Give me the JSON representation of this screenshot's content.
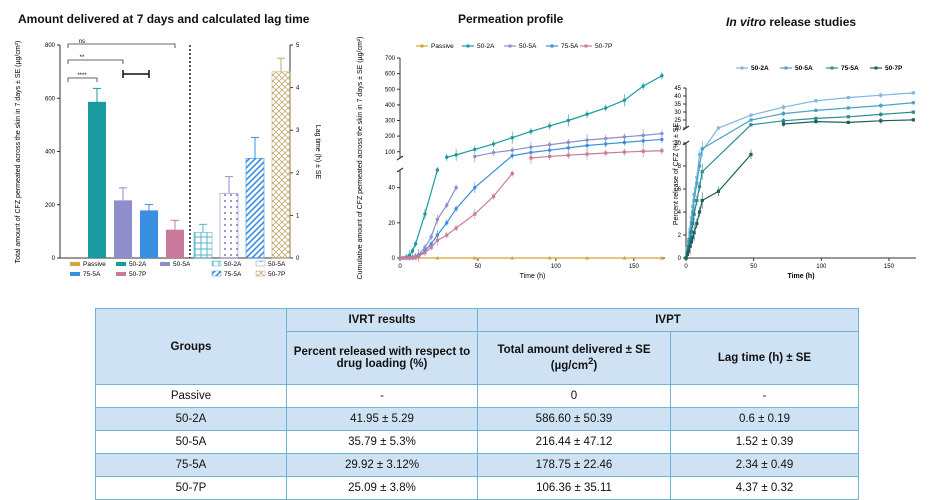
{
  "titles": {
    "panel1": "Amount delivered at 7 days and calculated lag time",
    "panel2": "Permeation profile",
    "panel3_italic": "In vitro",
    "panel3_rest": " release studies"
  },
  "colors": {
    "Passive": "#d4a33a",
    "50-2A": "#1a9aa0",
    "50-5A": "#8e8ecb",
    "75-5A": "#3b8fe0",
    "50-7P": "#c97a9b",
    "lagBeige": "#c2ab6d",
    "rel50-2A": "#7fb7df",
    "rel50-5A": "#4aa3c7",
    "rel75-5A": "#2a8a96",
    "rel50-7P": "#1f5e5a"
  },
  "chart_data": [
    {
      "type": "bar",
      "title": "Amount delivered at 7 days and calculated lag time",
      "ylabel": "Total amount of CFZ permeated across the skin in 7 days ± SE (µg/cm²)",
      "ylabel_right": "Lag time (h) ± SE",
      "ylim": [
        0,
        800
      ],
      "ylim_right": [
        0,
        5
      ],
      "yticks": [
        "0",
        "200",
        "400",
        "600",
        "800"
      ],
      "yticks_right": [
        "0",
        "1",
        "2",
        "3",
        "4",
        "5"
      ],
      "categories": [
        "Passive",
        "50-2A",
        "50-5A",
        "75-5A",
        "50-7P"
      ],
      "amount": [
        0,
        586.6,
        216.44,
        178.75,
        106.36
      ],
      "amount_se": [
        0,
        50.39,
        47.12,
        22.46,
        35.11
      ],
      "lag": [
        0.6,
        1.52,
        2.34,
        4.37
      ],
      "lag_se": [
        0.19,
        0.39,
        0.49,
        0.32
      ],
      "lag_groups": [
        "50-2A",
        "50-5A",
        "75-5A",
        "50-7P"
      ],
      "significance": [
        "****",
        "**",
        "ns"
      ],
      "legend1": [
        "Passive",
        "50-2A",
        "50-5A",
        "75-5A",
        "50-7P"
      ],
      "legend2": [
        "50-2A",
        "50-5A",
        "75-5A",
        "50-7P"
      ]
    },
    {
      "type": "line",
      "title": "Permeation profile",
      "xlabel": "Time (h)",
      "ylabel": "Cumulative amount of CFZ permeated across the skin in 7 days ± SE (µg/cm²)",
      "xlim": [
        0,
        170
      ],
      "xticks": [
        "0",
        "50",
        "100",
        "150"
      ],
      "yticks_lower": [
        "0",
        "20",
        "40"
      ],
      "yticks_upper": [
        "100",
        "200",
        "300",
        "400",
        "500",
        "600",
        "700"
      ],
      "broken_axis": [
        50,
        60
      ],
      "legend": [
        "Passive",
        "50-2A",
        "50-5A",
        "75-5A",
        "50-7P"
      ],
      "series": [
        {
          "name": "Passive",
          "x": [
            0,
            2,
            4,
            6,
            8,
            10,
            24,
            48,
            72,
            96,
            120,
            144,
            168
          ],
          "y": [
            0,
            0,
            0,
            0,
            0,
            0,
            0,
            0,
            0,
            0,
            0,
            0,
            0
          ]
        },
        {
          "name": "50-2A",
          "x": [
            0,
            2,
            4,
            6,
            8,
            10,
            16,
            24,
            30,
            36,
            48,
            60,
            72,
            84,
            96,
            108,
            120,
            132,
            144,
            156,
            168
          ],
          "y": [
            0,
            0,
            0.5,
            1.5,
            4,
            8,
            25,
            50,
            65,
            80,
            115,
            150,
            190,
            230,
            265,
            300,
            340,
            380,
            430,
            520,
            586.6
          ]
        },
        {
          "name": "50-5A",
          "x": [
            0,
            2,
            4,
            6,
            8,
            10,
            12,
            16,
            20,
            24,
            30,
            36,
            48,
            60,
            72,
            84,
            96,
            108,
            120,
            132,
            144,
            156,
            168
          ],
          "y": [
            0,
            0,
            0,
            0,
            0.5,
            1,
            2,
            6,
            12,
            22,
            30,
            40,
            70,
            95,
            110,
            130,
            145,
            160,
            175,
            185,
            195,
            205,
            216.44
          ]
        },
        {
          "name": "75-5A",
          "x": [
            0,
            2,
            4,
            6,
            8,
            10,
            12,
            16,
            20,
            24,
            30,
            36,
            48,
            60,
            72,
            84,
            96,
            108,
            120,
            132,
            144,
            156,
            168
          ],
          "y": [
            0,
            0,
            0,
            0,
            0.3,
            0.8,
            1.5,
            4,
            8,
            13,
            20,
            28,
            40,
            55,
            75,
            95,
            110,
            125,
            140,
            150,
            160,
            170,
            178.75
          ]
        },
        {
          "name": "50-7P",
          "x": [
            0,
            2,
            4,
            6,
            8,
            10,
            12,
            16,
            20,
            24,
            30,
            36,
            48,
            60,
            72,
            84,
            96,
            108,
            120,
            132,
            144,
            156,
            168
          ],
          "y": [
            0,
            0,
            0,
            0,
            0.3,
            0.6,
            1,
            3,
            6,
            10,
            13,
            17,
            25,
            35,
            48,
            60,
            70,
            78,
            85,
            92,
            98,
            103,
            106.36
          ]
        }
      ]
    },
    {
      "type": "line",
      "title": "In vitro release studies",
      "xlabel": "Time (h)",
      "ylabel": "Percent release of CFZ (%) ± SE",
      "xlim": [
        0,
        170
      ],
      "xticks": [
        "0",
        "50",
        "100",
        "150"
      ],
      "yticks_lower": [
        "0",
        "2",
        "4",
        "6",
        "8",
        "10"
      ],
      "yticks_upper": [
        "20",
        "25",
        "30",
        "35",
        "40",
        "45"
      ],
      "broken_axis": [
        10,
        20
      ],
      "legend": [
        "50-2A",
        "50-5A",
        "75-5A",
        "50-7P"
      ],
      "series": [
        {
          "name": "50-2A",
          "x": [
            0,
            1,
            2,
            3,
            4,
            5,
            6,
            8,
            10,
            12,
            24,
            48,
            72,
            96,
            120,
            144,
            168
          ],
          "y": [
            0,
            0.8,
            1.6,
            2.5,
            3.5,
            4.5,
            5.5,
            7,
            9,
            10.5,
            20,
            28,
            33,
            37,
            39,
            40.5,
            41.95
          ]
        },
        {
          "name": "50-5A",
          "x": [
            0,
            1,
            2,
            3,
            4,
            5,
            6,
            8,
            10,
            12,
            24,
            48,
            72,
            96,
            120,
            144,
            168
          ],
          "y": [
            0,
            0.7,
            1.4,
            2.2,
            3.1,
            4,
            5,
            6.5,
            8,
            9.5,
            18,
            25,
            29,
            31,
            32.5,
            34,
            35.79
          ]
        },
        {
          "name": "75-5A",
          "x": [
            0,
            1,
            2,
            3,
            4,
            5,
            6,
            8,
            10,
            12,
            24,
            48,
            72,
            96,
            120,
            144,
            168
          ],
          "y": [
            0,
            0.5,
            1,
            1.6,
            2.3,
            3,
            3.8,
            5,
            6.2,
            7.5,
            16,
            22,
            24.5,
            26,
            27,
            28.5,
            29.92
          ]
        },
        {
          "name": "50-7P",
          "x": [
            0,
            1,
            2,
            3,
            4,
            5,
            6,
            8,
            10,
            12,
            24,
            48,
            72,
            96,
            120,
            144,
            168
          ],
          "y": [
            0,
            0.3,
            0.6,
            1,
            1.4,
            1.8,
            2.2,
            3,
            4,
            5,
            5.8,
            9,
            22.5,
            24,
            23.5,
            24.5,
            25.09
          ]
        }
      ]
    }
  ],
  "table": {
    "groups_header": "Groups",
    "ivrt_header": "IVRT results",
    "ivpt_header": "IVPT",
    "col_release": "Percent released with respect to drug loading (%)",
    "col_total_a": "Total amount delivered ± SE",
    "col_total_b": "(µg/cm",
    "col_total_sup": "2",
    "col_total_c": ")",
    "col_lag": "Lag time (h) ± SE",
    "rows": [
      {
        "group": "Passive",
        "release": "-",
        "total": "0",
        "lag": "-"
      },
      {
        "group": "50-2A",
        "release": "41.95 ± 5.29",
        "total": "586.60 ± 50.39",
        "lag": "0.6 ± 0.19"
      },
      {
        "group": "50-5A",
        "release": "35.79 ± 5.3%",
        "total": "216.44 ± 47.12",
        "lag": "1.52 ± 0.39"
      },
      {
        "group": "75-5A",
        "release": "29.92 ± 3.12%",
        "total": "178.75 ± 22.46",
        "lag": "2.34 ±  0.49"
      },
      {
        "group": "50-7P",
        "release": "25.09 ± 3.8%",
        "total": "106.36 ± 35.11",
        "lag": "4.37 ±  0.32"
      }
    ]
  }
}
